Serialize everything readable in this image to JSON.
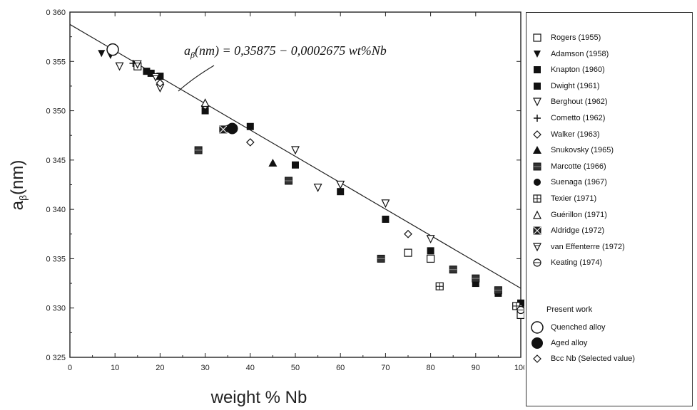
{
  "chart_data": {
    "type": "scatter",
    "title": "",
    "xlabel": "weight % Nb",
    "ylabel": "a_β(nm)",
    "xlim": [
      0,
      100
    ],
    "ylim": [
      0.325,
      0.36
    ],
    "x_ticks": [
      "0",
      "10",
      "20",
      "30",
      "40",
      "50",
      "60",
      "70",
      "80",
      "90",
      "100"
    ],
    "y_ticks": [
      "0 325",
      "0 330",
      "0 335",
      "0 340",
      "0 345",
      "0 350",
      "0 355",
      "0 360"
    ],
    "annotation": "a_β(nm) = 0,35875 − 0,0002675 wt%Nb",
    "fit_line": {
      "intercept": 0.35875,
      "slope": -0.0002675
    },
    "series": [
      {
        "name": "Rogers (1955)",
        "marker": "square-open",
        "points": [
          [
            15,
            0.3545
          ],
          [
            75,
            0.3356
          ],
          [
            80,
            0.335
          ],
          [
            100,
            0.3293
          ]
        ]
      },
      {
        "name": "Adamson (1958)",
        "marker": "triangle-down-filled",
        "points": [
          [
            7,
            0.3558
          ],
          [
            9,
            0.3556
          ]
        ]
      },
      {
        "name": "Knapton (1960)",
        "marker": "square-filled",
        "points": [
          [
            17,
            0.354
          ],
          [
            20,
            0.3535
          ],
          [
            30,
            0.35
          ],
          [
            40,
            0.3484
          ],
          [
            50,
            0.3445
          ],
          [
            70,
            0.339
          ],
          [
            80,
            0.3358
          ],
          [
            90,
            0.3325
          ],
          [
            100,
            0.3305
          ]
        ]
      },
      {
        "name": "Dwight (1961)",
        "marker": "square-filled",
        "points": [
          [
            18,
            0.3538
          ],
          [
            60,
            0.3418
          ],
          [
            95,
            0.3315
          ]
        ]
      },
      {
        "name": "Berghout (1962)",
        "marker": "triangle-down-open",
        "points": [
          [
            11,
            0.3545
          ],
          [
            20,
            0.3523
          ],
          [
            50,
            0.346
          ],
          [
            55,
            0.3422
          ],
          [
            60,
            0.3425
          ],
          [
            70,
            0.3406
          ],
          [
            80,
            0.337
          ]
        ]
      },
      {
        "name": "Cometto (1962)",
        "marker": "plus",
        "points": [
          [
            14,
            0.3548
          ]
        ]
      },
      {
        "name": "Walker (1963)",
        "marker": "diamond-open",
        "points": [
          [
            20,
            0.3528
          ],
          [
            30,
            0.3505
          ],
          [
            40,
            0.3468
          ],
          [
            75,
            0.3375
          ],
          [
            100,
            0.33
          ]
        ]
      },
      {
        "name": "Snukovsky (1965)",
        "marker": "triangle-up-filled",
        "points": [
          [
            45,
            0.3447
          ]
        ]
      },
      {
        "name": "Marcotte (1966)",
        "marker": "square-patterned",
        "points": [
          [
            28.5,
            0.346
          ],
          [
            48.5,
            0.3429
          ],
          [
            69,
            0.335
          ],
          [
            85,
            0.3339
          ],
          [
            90,
            0.333
          ],
          [
            95,
            0.3318
          ]
        ]
      },
      {
        "name": "Suenaga (1967)",
        "marker": "circle-filled",
        "points": [
          [
            35,
            0.3482
          ]
        ]
      },
      {
        "name": "Texier (1971)",
        "marker": "square-grid",
        "points": [
          [
            82,
            0.3322
          ],
          [
            99,
            0.3302
          ]
        ]
      },
      {
        "name": "Guérillon (1971)",
        "marker": "triangle-up-open",
        "points": [
          [
            30,
            0.3508
          ]
        ]
      },
      {
        "name": "Aldridge (1972)",
        "marker": "square-x",
        "points": [
          [
            34,
            0.3481
          ]
        ]
      },
      {
        "name": "van Effenterre (1972)",
        "marker": "triangle-down-hatched",
        "points": [
          [
            15,
            0.3547
          ],
          [
            19,
            0.3534
          ]
        ]
      },
      {
        "name": "Keating (1974)",
        "marker": "circle-minus",
        "points": [
          [
            100,
            0.3298
          ]
        ]
      },
      {
        "name": "Quenched alloy",
        "marker": "circle-open-large",
        "points": [
          [
            9.5,
            0.3562
          ]
        ]
      },
      {
        "name": "Aged alloy",
        "marker": "circle-filled-large",
        "points": [
          [
            36,
            0.3482
          ]
        ]
      },
      {
        "name": "Bcc Nb (Selected value)",
        "marker": "diamond-open",
        "points": []
      }
    ]
  },
  "legend": {
    "items": [
      {
        "label": "Rogers (1955)",
        "marker": "square-open"
      },
      {
        "label": "Adamson (1958)",
        "marker": "triangle-down-filled"
      },
      {
        "label": "Knapton (1960)",
        "marker": "square-filled"
      },
      {
        "label": "Dwight (1961)",
        "marker": "square-filled"
      },
      {
        "label": "Berghout (1962)",
        "marker": "triangle-down-open"
      },
      {
        "label": "Cometto (1962)",
        "marker": "plus"
      },
      {
        "label": "Walker (1963)",
        "marker": "diamond-open"
      },
      {
        "label": "Snukovsky (1965)",
        "marker": "triangle-up-filled"
      },
      {
        "label": "Marcotte (1966)",
        "marker": "square-patterned"
      },
      {
        "label": "Suenaga (1967)",
        "marker": "circle-filled"
      },
      {
        "label": "Texier (1971)",
        "marker": "square-grid"
      },
      {
        "label": "Guérillon (1971)",
        "marker": "triangle-up-open"
      },
      {
        "label": "Aldridge (1972)",
        "marker": "square-x"
      },
      {
        "label": "van Effenterre (1972)",
        "marker": "triangle-down-hatched"
      },
      {
        "label": "Keating (1974)",
        "marker": "circle-minus"
      }
    ],
    "present_work_title": "Present work",
    "present_work": [
      {
        "label": "Quenched alloy",
        "marker": "circle-open-large"
      },
      {
        "label": "Aged alloy",
        "marker": "circle-filled-large"
      },
      {
        "label": "Bcc Nb (Selected value)",
        "marker": "diamond-open"
      }
    ]
  }
}
